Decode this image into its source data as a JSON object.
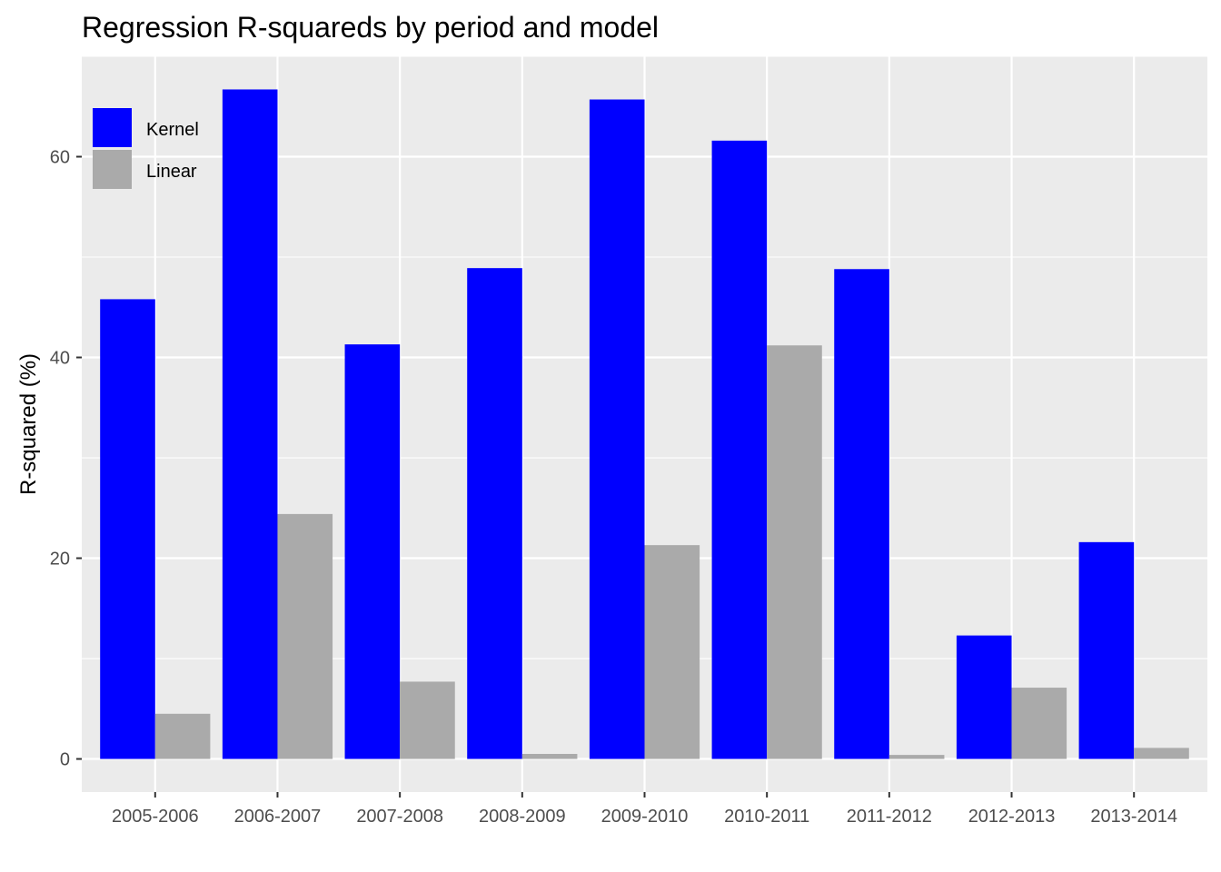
{
  "chart_data": {
    "type": "bar",
    "title": "Regression R-squareds by period and model",
    "xlabel": "",
    "ylabel": "R-squared (%)",
    "categories": [
      "2005-2006",
      "2006-2007",
      "2007-2008",
      "2008-2009",
      "2009-2010",
      "2010-2011",
      "2011-2012",
      "2012-2013",
      "2013-2014"
    ],
    "series": [
      {
        "name": "Kernel",
        "color": "#0000ff",
        "values": [
          45.8,
          66.7,
          41.3,
          48.9,
          65.7,
          61.6,
          48.8,
          12.3,
          21.6
        ]
      },
      {
        "name": "Linear",
        "color": "#aaaaaa",
        "values": [
          4.5,
          24.4,
          7.7,
          0.5,
          21.3,
          41.2,
          0.4,
          7.1,
          1.1
        ]
      }
    ],
    "ylim": [
      -3.3,
      70.0
    ],
    "yticks": [
      0,
      20,
      40,
      60
    ],
    "grid": true,
    "legend_position": "top-left",
    "panel_color": "#ebebeb"
  }
}
